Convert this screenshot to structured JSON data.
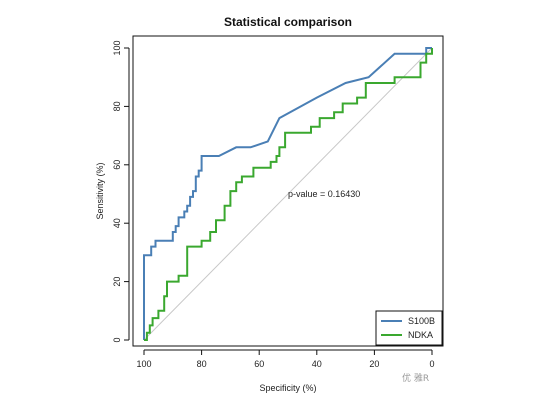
{
  "chart_data": {
    "type": "line",
    "title": "Statistical comparison",
    "xlabel": "Specificity (%)",
    "ylabel": "Sensitivity (%)",
    "xlim": [
      100,
      0
    ],
    "ylim": [
      0,
      100
    ],
    "x_ticks": [
      "100",
      "80",
      "60",
      "40",
      "20",
      "0"
    ],
    "y_ticks": [
      "0",
      "20",
      "40",
      "60",
      "80",
      "100"
    ],
    "annotation": "p-value = 0.16430",
    "legend_position": "bottom-right",
    "reference_line": {
      "from": [
        100,
        0
      ],
      "to": [
        0,
        100
      ],
      "color": "#c8c8c8"
    },
    "series": [
      {
        "name": "S100B",
        "color": "#4a7fb5",
        "points": [
          [
            100,
            0
          ],
          [
            100,
            29
          ],
          [
            97.5,
            29
          ],
          [
            97.5,
            32
          ],
          [
            96,
            32
          ],
          [
            96,
            34
          ],
          [
            90,
            34
          ],
          [
            90,
            37
          ],
          [
            89,
            37
          ],
          [
            89,
            39
          ],
          [
            88,
            39
          ],
          [
            88,
            42
          ],
          [
            86,
            42
          ],
          [
            86,
            44
          ],
          [
            85,
            44
          ],
          [
            85,
            46
          ],
          [
            84,
            46
          ],
          [
            84,
            49
          ],
          [
            83,
            49
          ],
          [
            83,
            51
          ],
          [
            82,
            51
          ],
          [
            82,
            56
          ],
          [
            81,
            56
          ],
          [
            81,
            58
          ],
          [
            80,
            58
          ],
          [
            80,
            63
          ],
          [
            74,
            63
          ],
          [
            68,
            66
          ],
          [
            63,
            66
          ],
          [
            57,
            68
          ],
          [
            53,
            76
          ],
          [
            40,
            83
          ],
          [
            30,
            88
          ],
          [
            22,
            90
          ],
          [
            13,
            98
          ],
          [
            2,
            98
          ],
          [
            2,
            100
          ],
          [
            0,
            100
          ]
        ]
      },
      {
        "name": "NDKA",
        "color": "#3aa82f",
        "points": [
          [
            100,
            0
          ],
          [
            99,
            0
          ],
          [
            99,
            2.5
          ],
          [
            98,
            2.5
          ],
          [
            98,
            5
          ],
          [
            97,
            5
          ],
          [
            97,
            7.5
          ],
          [
            95,
            7.5
          ],
          [
            95,
            10
          ],
          [
            93,
            10
          ],
          [
            93,
            15
          ],
          [
            92,
            15
          ],
          [
            92,
            20
          ],
          [
            88,
            20
          ],
          [
            88,
            22
          ],
          [
            85,
            22
          ],
          [
            85,
            32
          ],
          [
            80,
            32
          ],
          [
            80,
            34
          ],
          [
            77,
            34
          ],
          [
            77,
            37
          ],
          [
            75,
            37
          ],
          [
            75,
            41
          ],
          [
            72,
            41
          ],
          [
            72,
            46
          ],
          [
            70,
            46
          ],
          [
            70,
            51
          ],
          [
            68,
            51
          ],
          [
            68,
            54
          ],
          [
            66,
            54
          ],
          [
            66,
            56
          ],
          [
            62,
            56
          ],
          [
            62,
            59
          ],
          [
            56,
            59
          ],
          [
            56,
            61
          ],
          [
            54,
            61
          ],
          [
            54,
            63
          ],
          [
            53,
            63
          ],
          [
            53,
            66
          ],
          [
            51,
            66
          ],
          [
            51,
            71
          ],
          [
            42,
            71
          ],
          [
            42,
            73
          ],
          [
            39,
            73
          ],
          [
            39,
            76
          ],
          [
            34,
            76
          ],
          [
            34,
            78
          ],
          [
            31,
            78
          ],
          [
            31,
            81
          ],
          [
            26,
            81
          ],
          [
            26,
            83
          ],
          [
            23,
            83
          ],
          [
            23,
            88
          ],
          [
            13,
            88
          ],
          [
            13,
            90
          ],
          [
            4,
            90
          ],
          [
            4,
            95
          ],
          [
            2,
            95
          ],
          [
            2,
            98
          ],
          [
            0,
            98
          ],
          [
            0,
            100
          ]
        ]
      }
    ]
  },
  "watermark": "优 雅R"
}
